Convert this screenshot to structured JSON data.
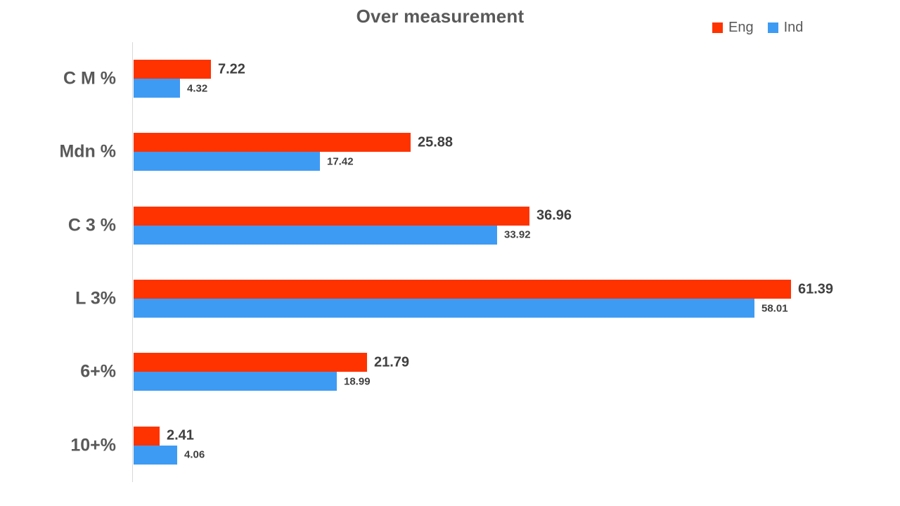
{
  "chart_data": {
    "type": "bar",
    "orientation": "horizontal",
    "title": "Over measurement",
    "categories": [
      "C M %",
      "Mdn %",
      "C 3 %",
      "L 3%",
      "6+%",
      "10+%"
    ],
    "series": [
      {
        "name": "Eng",
        "color": "#ff3300",
        "values": [
          7.22,
          25.88,
          36.96,
          61.39,
          21.79,
          2.41
        ]
      },
      {
        "name": "Ind",
        "color": "#3e9bf4",
        "values": [
          4.32,
          17.42,
          33.92,
          58.01,
          18.99,
          4.06
        ]
      }
    ],
    "value_labels": true,
    "xlim": [
      0,
      70
    ],
    "grid": false,
    "legend_position": "top-right",
    "xlabel": "",
    "ylabel": "",
    "title_color": "#595959",
    "category_label_color": "#595959",
    "value_label_color": "#404040",
    "axis_line_color": "#d9d9d9"
  }
}
